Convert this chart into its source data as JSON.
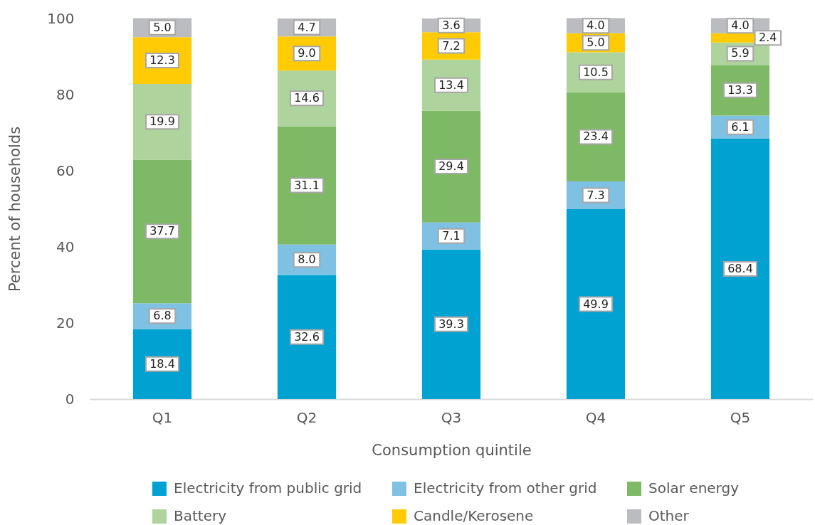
{
  "chart_data": {
    "type": "bar",
    "stacked": true,
    "xlabel": "Consumption quintile",
    "ylabel": "Percent of households",
    "categories": [
      "Q1",
      "Q2",
      "Q3",
      "Q4",
      "Q5"
    ],
    "series": [
      {
        "name": "Electricity from public grid",
        "color": "#00a2d2",
        "values": [
          18.4,
          32.6,
          39.3,
          49.9,
          68.4
        ],
        "value_labels": [
          "18.4",
          "32.6",
          "39.3",
          "49.9",
          "68.4"
        ]
      },
      {
        "name": "Electricity from other grid",
        "color": "#7ec1e3",
        "values": [
          6.8,
          8.0,
          7.1,
          7.3,
          6.1
        ],
        "value_labels": [
          "6.8",
          "8.0",
          "7.1",
          "7.3",
          "6.1"
        ]
      },
      {
        "name": "Solar energy",
        "color": "#7eba66",
        "values": [
          37.7,
          31.1,
          29.4,
          23.4,
          13.3
        ],
        "value_labels": [
          "37.7",
          "31.1",
          "29.4",
          "23.4",
          "13.3"
        ]
      },
      {
        "name": "Battery",
        "color": "#afd39d",
        "values": [
          19.9,
          14.6,
          13.4,
          10.5,
          5.9
        ],
        "value_labels": [
          "19.9",
          "14.6",
          "13.4",
          "10.5",
          "5.9"
        ]
      },
      {
        "name": "Candle/Kerosene",
        "color": "#ffcb05",
        "values": [
          12.3,
          9.0,
          7.2,
          5.0,
          2.4
        ],
        "value_labels": [
          "12.3",
          "9.0",
          "7.2",
          "5.0",
          "2.4"
        ]
      },
      {
        "name": "Other",
        "color": "#bbbcbf",
        "values": [
          5.0,
          4.7,
          3.6,
          4.0,
          4.0
        ],
        "value_labels": [
          "5.0",
          "4.7",
          "3.6",
          "4.0",
          "4.0"
        ]
      }
    ],
    "ylim": [
      0,
      100
    ],
    "yticks": [
      0,
      20,
      40,
      60,
      80,
      100
    ],
    "legend": "bottom",
    "grid": false
  }
}
